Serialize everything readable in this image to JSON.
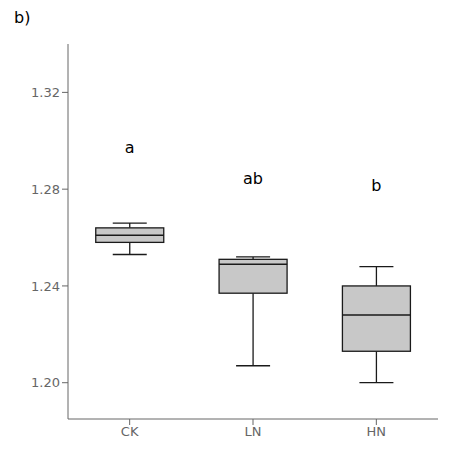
{
  "chart_data": {
    "type": "box",
    "title": "b)",
    "categories": [
      "CK",
      "LN",
      "HN"
    ],
    "values": [
      {
        "whislo": 1.253,
        "q1": 1.258,
        "med": 1.261,
        "q3": 1.264,
        "whishi": 1.266
      },
      {
        "whislo": 1.207,
        "q1": 1.237,
        "med": 1.249,
        "q3": 1.251,
        "whishi": 1.252
      },
      {
        "whislo": 1.2,
        "q1": 1.213,
        "med": 1.228,
        "q3": 1.24,
        "whishi": 1.248
      }
    ],
    "annotations": [
      {
        "text": "a",
        "x": "CK",
        "y": 1.293
      },
      {
        "text": "ab",
        "x": "LN",
        "y": 1.28
      },
      {
        "text": "b",
        "x": "HN",
        "y": 1.277
      }
    ],
    "ylim": [
      1.185,
      1.34
    ],
    "yticks": [
      {
        "value": 1.2,
        "label": "1.20"
      },
      {
        "value": 1.24,
        "label": "1.24"
      },
      {
        "value": 1.28,
        "label": "1.28"
      },
      {
        "value": 1.32,
        "label": "1.32"
      }
    ],
    "color": "#c8c8c8",
    "grid": false
  }
}
